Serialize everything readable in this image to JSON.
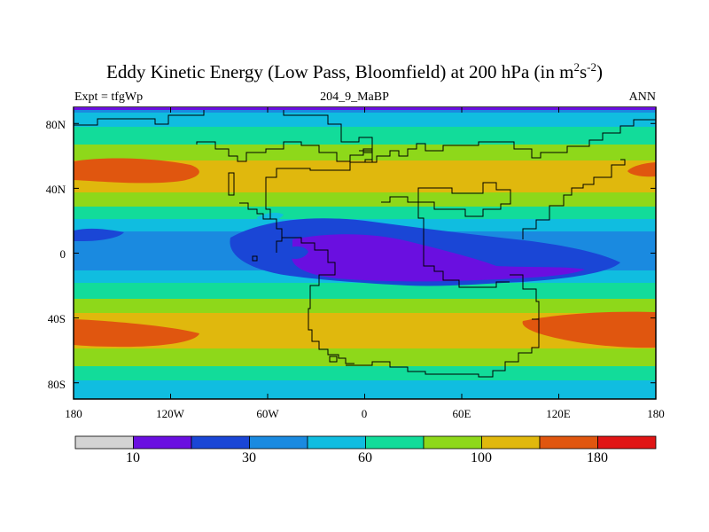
{
  "title": {
    "main": "Eddy Kinetic Energy (Low Pass, Bloomfield) at 200 hPa (in m",
    "sup1": "2",
    "mid": "s",
    "sup2": "-2",
    "end": ")"
  },
  "subtitle": {
    "left": "Expt = tfgWp",
    "center": "204_9_MaBP",
    "right": "ANN"
  },
  "map": {
    "projection": "cylindrical equidistant",
    "lon_range": [
      -180,
      180
    ],
    "lat_range": [
      -90,
      90
    ],
    "y_axis_labels": [
      "80N",
      "40N",
      "0",
      "40S",
      "80S"
    ],
    "x_axis_labels": [
      "180",
      "120W",
      "60W",
      "0",
      "60E",
      "120E",
      "180"
    ]
  },
  "colorbar": {
    "colors": [
      "#d3d3d3",
      "#6a0fe0",
      "#1a46d6",
      "#1a8ae0",
      "#10bde0",
      "#12dc9a",
      "#8ed81a",
      "#e0b80d",
      "#e0560f",
      "#e01515"
    ],
    "labels": [
      "10",
      "30",
      "60",
      "100",
      "180"
    ]
  }
}
